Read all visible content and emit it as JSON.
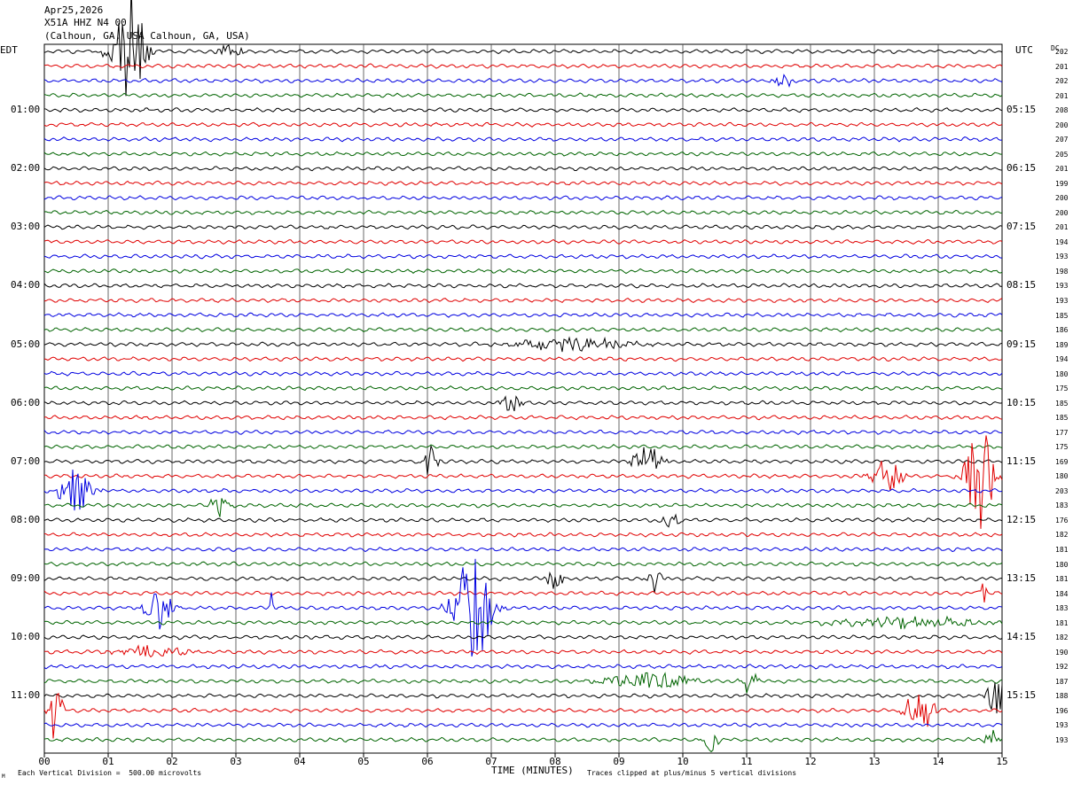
{
  "header": {
    "date": "Apr25,2026",
    "station": "X51A HHZ N4 00",
    "location": "(Calhoun, GA, USA Calhoun, GA, USA)"
  },
  "left_tz": "EDT",
  "right_tz": "UTC",
  "dc_heading": "DC",
  "footer": {
    "scale": "Each Vertical Division =  500.00 microvolts",
    "clip": "Traces clipped at plus/minus 5 vertical divisions",
    "corner_mark": "M"
  },
  "colors": {
    "trace_cycle": [
      "#000000",
      "#e00000",
      "#0000e0",
      "#006400"
    ],
    "grid": "#000000"
  },
  "chart_data": {
    "type": "line",
    "title": "X51A HHZ N4 00",
    "xlabel": "TIME (MINUTES)",
    "xlim": [
      0,
      15
    ],
    "x_ticks": [
      "00",
      "01",
      "02",
      "03",
      "04",
      "05",
      "06",
      "07",
      "08",
      "09",
      "10",
      "11",
      "12",
      "13",
      "14",
      "15"
    ],
    "left_hour_labels": [
      "01:00",
      "02:00",
      "03:00",
      "04:00",
      "05:00",
      "06:00",
      "07:00",
      "08:00",
      "09:00",
      "10:00",
      "11:00"
    ],
    "right_hour_labels": [
      "05:15",
      "06:15",
      "07:15",
      "08:15",
      "09:15",
      "10:15",
      "11:15",
      "12:15",
      "13:15",
      "14:15",
      "15:15"
    ],
    "dc_offsets": [
      202,
      201,
      202,
      201,
      208,
      200,
      207,
      205,
      201,
      199,
      200,
      200,
      201,
      194,
      193,
      198,
      193,
      193,
      185,
      186,
      189,
      194,
      180,
      175,
      185,
      185,
      177,
      175,
      169,
      180,
      203,
      183,
      176,
      182,
      181,
      180,
      181,
      184,
      183,
      181,
      182,
      190,
      192,
      187,
      188,
      196,
      193,
      193
    ],
    "events": [
      {
        "trace": 0,
        "minute": 1.3,
        "width": 0.35,
        "amp": 5.0
      },
      {
        "trace": 0,
        "minute": 2.9,
        "width": 0.3,
        "amp": 0.5
      },
      {
        "trace": 2,
        "minute": 11.6,
        "width": 0.25,
        "amp": 0.4
      },
      {
        "trace": 20,
        "minute": 8.3,
        "width": 1.2,
        "amp": 0.5
      },
      {
        "trace": 24,
        "minute": 7.3,
        "width": 0.25,
        "amp": 0.6
      },
      {
        "trace": 28,
        "minute": 6.05,
        "width": 0.15,
        "amp": 1.4
      },
      {
        "trace": 28,
        "minute": 9.45,
        "width": 0.3,
        "amp": 1.3
      },
      {
        "trace": 29,
        "minute": 13.2,
        "width": 0.3,
        "amp": 1.4
      },
      {
        "trace": 29,
        "minute": 14.65,
        "width": 0.3,
        "amp": 3.8
      },
      {
        "trace": 30,
        "minute": 0.5,
        "width": 0.4,
        "amp": 1.5
      },
      {
        "trace": 31,
        "minute": 2.75,
        "width": 0.2,
        "amp": 1.1
      },
      {
        "trace": 32,
        "minute": 9.8,
        "width": 0.2,
        "amp": 0.5
      },
      {
        "trace": 36,
        "minute": 8.0,
        "width": 0.15,
        "amp": 1.4
      },
      {
        "trace": 36,
        "minute": 9.55,
        "width": 0.2,
        "amp": 1.0
      },
      {
        "trace": 37,
        "minute": 14.7,
        "width": 0.08,
        "amp": 0.8
      },
      {
        "trace": 38,
        "minute": 1.8,
        "width": 0.3,
        "amp": 1.5
      },
      {
        "trace": 38,
        "minute": 3.55,
        "width": 0.05,
        "amp": 1.2
      },
      {
        "trace": 38,
        "minute": 6.7,
        "width": 0.4,
        "amp": 4.5
      },
      {
        "trace": 39,
        "minute": 13.5,
        "width": 1.6,
        "amp": 0.4
      },
      {
        "trace": 41,
        "minute": 1.7,
        "width": 0.8,
        "amp": 0.4
      },
      {
        "trace": 43,
        "minute": 11.05,
        "width": 0.15,
        "amp": 1.2
      },
      {
        "trace": 43,
        "minute": 9.5,
        "width": 1.0,
        "amp": 0.6
      },
      {
        "trace": 44,
        "minute": 14.9,
        "width": 0.2,
        "amp": 1.5
      },
      {
        "trace": 45,
        "minute": 0.15,
        "width": 0.2,
        "amp": 2.0
      },
      {
        "trace": 45,
        "minute": 13.7,
        "width": 0.3,
        "amp": 1.7
      },
      {
        "trace": 47,
        "minute": 10.45,
        "width": 0.2,
        "amp": 0.8
      },
      {
        "trace": 47,
        "minute": 14.85,
        "width": 0.15,
        "amp": 1.0
      }
    ]
  }
}
